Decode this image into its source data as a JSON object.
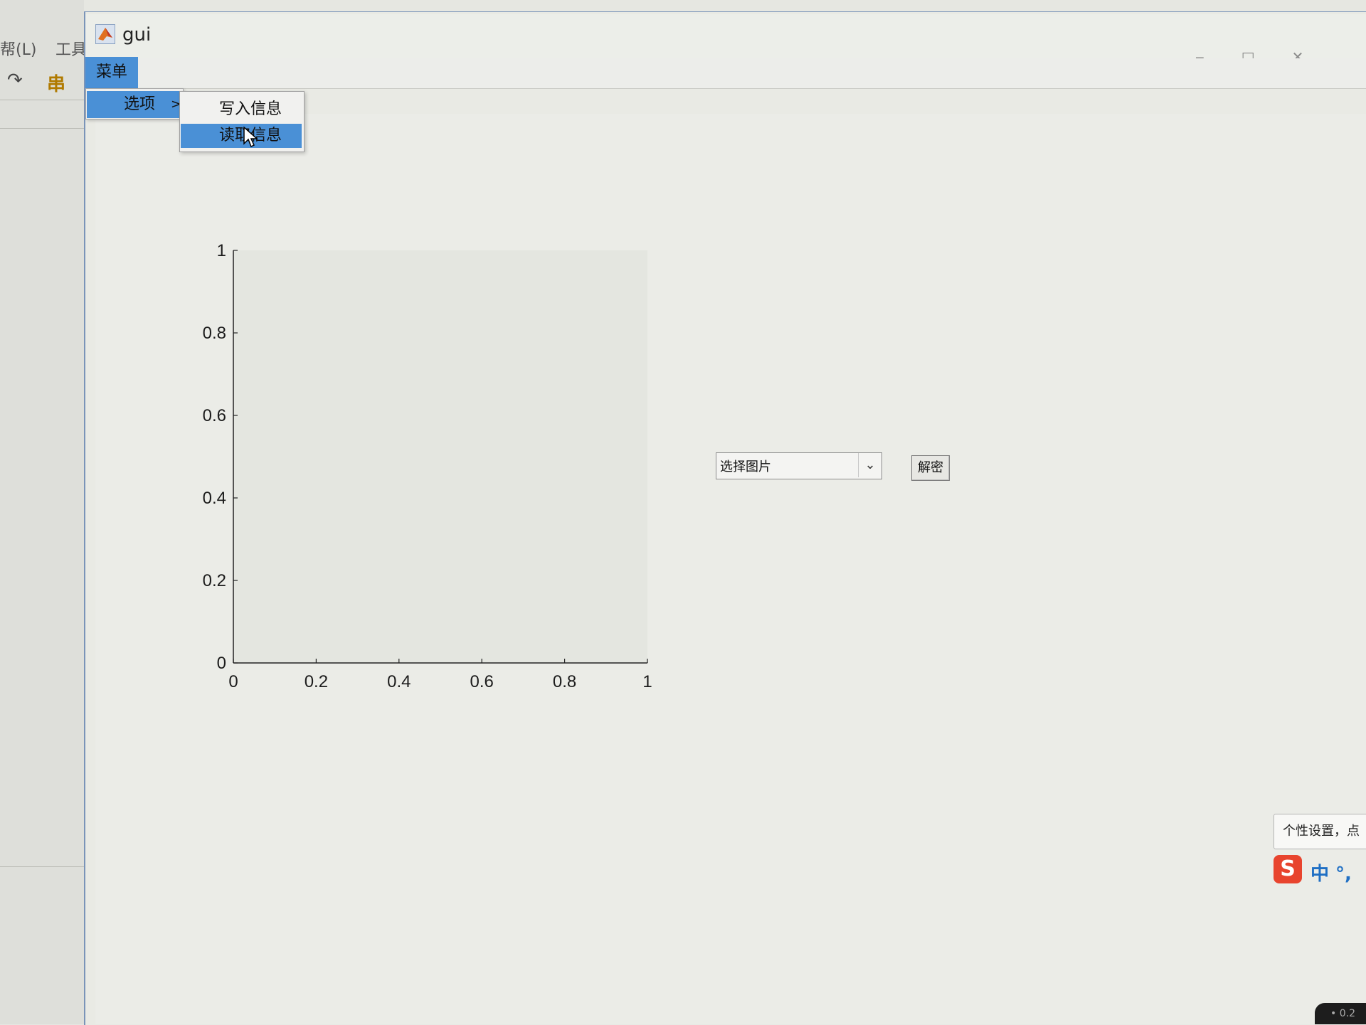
{
  "background_app": {
    "menu_partial_1": "帮(L)",
    "menu_partial_2": "工具",
    "tool_glyph_1": "↷",
    "tool_glyph_2": "串"
  },
  "window": {
    "title": "gui",
    "icon": "matlab-icon"
  },
  "menubar": {
    "menu_label": "菜单"
  },
  "dropdown_menu": {
    "item_label": "选项",
    "submenu_arrow": ">"
  },
  "submenu": {
    "items": [
      {
        "label": "写入信息",
        "highlighted": false
      },
      {
        "label": "读取信息",
        "highlighted": true
      }
    ]
  },
  "popup_select": {
    "value": "选择图片"
  },
  "decrypt_button": {
    "label": "解密"
  },
  "ime": {
    "tooltip": "个性设置，点",
    "mode": "中 °,",
    "logo": "S"
  },
  "colors": {
    "highlight": "#4a90d6",
    "window_bg": "#e9eae4",
    "axes_bg": "#e4e6e0"
  },
  "chart_data": {
    "type": "scatter",
    "title": "",
    "xlabel": "",
    "ylabel": "",
    "xlim": [
      0,
      1
    ],
    "ylim": [
      0,
      1
    ],
    "xticks": [
      "0",
      "0.2",
      "0.4",
      "0.6",
      "0.8",
      "1"
    ],
    "yticks": [
      "0",
      "0.2",
      "0.4",
      "0.6",
      "0.8",
      "1"
    ],
    "series": [],
    "grid": false
  }
}
